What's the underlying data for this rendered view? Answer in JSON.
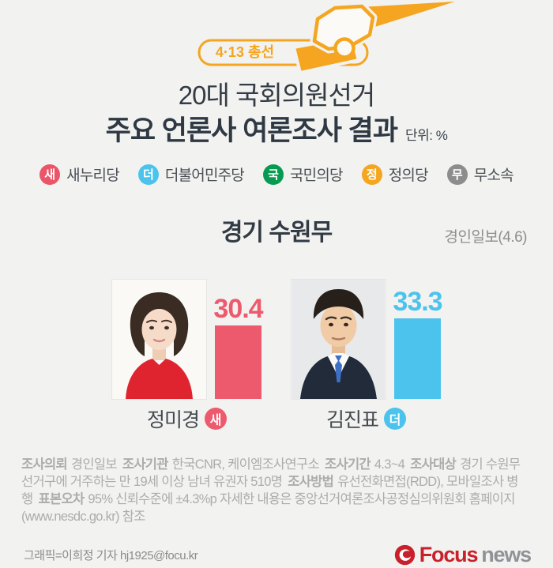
{
  "banner": {
    "badge_label": "4·13 총선"
  },
  "title": {
    "line1": "20대 국회의원선거",
    "line2": "주요 언론사 여론조사 결과",
    "unit_label": "단위: %"
  },
  "legend": {
    "items": [
      {
        "initial": "새",
        "party": "새누리당",
        "color": "#EA5568"
      },
      {
        "initial": "더",
        "party": "더불어민주당",
        "color": "#4CC3EC"
      },
      {
        "initial": "국",
        "party": "국민의당",
        "color": "#079B52"
      },
      {
        "initial": "정",
        "party": "정의당",
        "color": "#F5A51F"
      },
      {
        "initial": "무",
        "party": "무소속",
        "color": "#8D8D8D"
      }
    ]
  },
  "section": {
    "district": "경기 수원무",
    "source": "경인일보(4.6)"
  },
  "chart_data": {
    "type": "bar",
    "title": "경기 수원무",
    "source": "경인일보(4.6)",
    "unit": "%",
    "categories": [
      "정미경",
      "김진표"
    ],
    "values": [
      30.4,
      33.3
    ],
    "ylim": [
      0,
      45
    ],
    "grid": false,
    "legend_position": "top",
    "candidates": [
      {
        "name": "정미경",
        "party_initial": "새",
        "party": "새누리당",
        "value": "30.4",
        "color": "#ED5A6D"
      },
      {
        "name": "김진표",
        "party_initial": "더",
        "party": "더불어민주당",
        "value": "33.3",
        "color": "#4CC3EC"
      }
    ]
  },
  "footnote": {
    "segments": [
      {
        "label": "조사의뢰",
        "text": "경인일보"
      },
      {
        "label": "조사기관",
        "text": "한국CNR, 케이엠조사연구소"
      },
      {
        "label": "조사기간",
        "text": "4.3~4"
      },
      {
        "label": "조사대상",
        "text": "경기 수원무 선거구에 거주하는 만 19세 이상 남녀 유권자 510명"
      },
      {
        "label": "조사방법",
        "text": "유선전화면접(RDD), 모바일조사 병행"
      },
      {
        "label": "표본오차",
        "text": "95% 신뢰수준에 ±4.3%p 자세한 내용은 중앙선거여론조사공정심의위원회 홈페이지(www.nesdc.go.kr) 참조"
      }
    ]
  },
  "credit": "그래픽=이희정 기자 hj1925@focu.kr",
  "logo": {
    "word1": "Focus",
    "word2": "news",
    "accent": "#C9202B",
    "gray": "#8F9397"
  }
}
